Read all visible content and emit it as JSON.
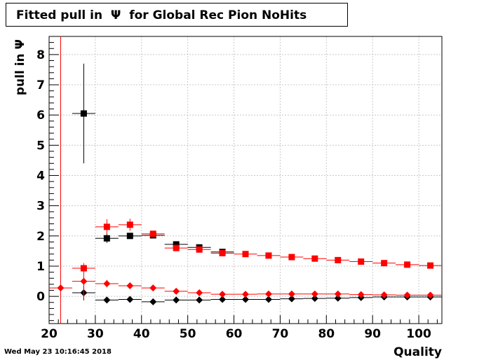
{
  "header": {
    "title": "Fitted pull in  Ψ  for Global Rec Pion NoHits"
  },
  "footer": {
    "timestamp": "Wed May 23 10:16:45 2018"
  },
  "colors": {
    "black_series": "#000000",
    "red_series": "#ff0000",
    "grid": "#c8c8c8",
    "cut_line": "#ff0000"
  },
  "chart_data": {
    "type": "scatter",
    "title": "Fitted pull in  Ψ  for Global Rec Pion NoHits",
    "xlabel": "Quality",
    "ylabel": "pull in  Ψ",
    "xlim": [
      20,
      105
    ],
    "ylim": [
      -0.9,
      8.6
    ],
    "x_ticks": [
      20,
      30,
      40,
      50,
      60,
      70,
      80,
      90,
      100
    ],
    "y_ticks": [
      0,
      1,
      2,
      3,
      4,
      5,
      6,
      7,
      8
    ],
    "grid": true,
    "legend": "none",
    "vertical_line_x": 22.5,
    "bin_half_width": 2.5,
    "series": [
      {
        "marker": "square",
        "color": "#000000",
        "points": [
          {
            "x": 27.5,
            "y": 6.05,
            "err": 1.65
          },
          {
            "x": 32.5,
            "y": 1.92,
            "err": 0.15
          },
          {
            "x": 37.5,
            "y": 2.0,
            "err": 0.08
          },
          {
            "x": 42.5,
            "y": 2.02,
            "err": 0.05
          },
          {
            "x": 47.5,
            "y": 1.72,
            "err": 0.04
          },
          {
            "x": 52.5,
            "y": 1.62,
            "err": 0.04
          },
          {
            "x": 57.5,
            "y": 1.47,
            "err": 0.03
          }
        ]
      },
      {
        "marker": "square",
        "color": "#ff0000",
        "points": [
          {
            "x": 27.5,
            "y": 0.93,
            "err": 0.1
          },
          {
            "x": 32.5,
            "y": 2.3,
            "err": 0.25
          },
          {
            "x": 37.5,
            "y": 2.37,
            "err": 0.2
          },
          {
            "x": 42.5,
            "y": 2.07,
            "err": 0.08
          },
          {
            "x": 47.5,
            "y": 1.6,
            "err": 0.05
          },
          {
            "x": 52.5,
            "y": 1.55,
            "err": 0.04
          },
          {
            "x": 57.5,
            "y": 1.43,
            "err": 0.03
          },
          {
            "x": 62.5,
            "y": 1.4,
            "err": 0.03
          },
          {
            "x": 67.5,
            "y": 1.35,
            "err": 0.03
          },
          {
            "x": 72.5,
            "y": 1.3,
            "err": 0.03
          },
          {
            "x": 77.5,
            "y": 1.25,
            "err": 0.03
          },
          {
            "x": 82.5,
            "y": 1.2,
            "err": 0.03
          },
          {
            "x": 87.5,
            "y": 1.15,
            "err": 0.03
          },
          {
            "x": 92.5,
            "y": 1.1,
            "err": 0.03
          },
          {
            "x": 97.5,
            "y": 1.05,
            "err": 0.03
          },
          {
            "x": 102.5,
            "y": 1.02,
            "err": 0.03
          }
        ]
      },
      {
        "marker": "diamond",
        "color": "#000000",
        "points": [
          {
            "x": 27.5,
            "y": 0.12,
            "err": 0.25
          },
          {
            "x": 32.5,
            "y": -0.12,
            "err": 0.08
          },
          {
            "x": 37.5,
            "y": -0.1,
            "err": 0.04
          },
          {
            "x": 42.5,
            "y": -0.18,
            "err": 0.03
          },
          {
            "x": 47.5,
            "y": -0.12,
            "err": 0.03
          },
          {
            "x": 52.5,
            "y": -0.12,
            "err": 0.03
          },
          {
            "x": 57.5,
            "y": -0.1,
            "err": 0.02
          },
          {
            "x": 62.5,
            "y": -0.1,
            "err": 0.02
          },
          {
            "x": 67.5,
            "y": -0.1,
            "err": 0.02
          },
          {
            "x": 72.5,
            "y": -0.08,
            "err": 0.02
          },
          {
            "x": 77.5,
            "y": -0.07,
            "err": 0.02
          },
          {
            "x": 82.5,
            "y": -0.06,
            "err": 0.02
          },
          {
            "x": 87.5,
            "y": -0.04,
            "err": 0.02
          },
          {
            "x": 92.5,
            "y": -0.02,
            "err": 0.02
          },
          {
            "x": 97.5,
            "y": -0.02,
            "err": 0.02
          },
          {
            "x": 102.5,
            "y": -0.02,
            "err": 0.02
          }
        ]
      },
      {
        "marker": "diamond",
        "color": "#ff0000",
        "points": [
          {
            "x": 22.5,
            "y": 0.28,
            "err": 0.05
          },
          {
            "x": 27.5,
            "y": 0.5,
            "err": 0.6
          },
          {
            "x": 32.5,
            "y": 0.42,
            "err": 0.12
          },
          {
            "x": 37.5,
            "y": 0.35,
            "err": 0.06
          },
          {
            "x": 42.5,
            "y": 0.28,
            "err": 0.04
          },
          {
            "x": 47.5,
            "y": 0.17,
            "err": 0.04
          },
          {
            "x": 52.5,
            "y": 0.12,
            "err": 0.03
          },
          {
            "x": 57.5,
            "y": 0.07,
            "err": 0.03
          },
          {
            "x": 62.5,
            "y": 0.07,
            "err": 0.02
          },
          {
            "x": 67.5,
            "y": 0.08,
            "err": 0.02
          },
          {
            "x": 72.5,
            "y": 0.08,
            "err": 0.02
          },
          {
            "x": 77.5,
            "y": 0.08,
            "err": 0.02
          },
          {
            "x": 82.5,
            "y": 0.08,
            "err": 0.02
          },
          {
            "x": 87.5,
            "y": 0.06,
            "err": 0.02
          },
          {
            "x": 92.5,
            "y": 0.05,
            "err": 0.02
          },
          {
            "x": 97.5,
            "y": 0.04,
            "err": 0.02
          },
          {
            "x": 102.5,
            "y": 0.04,
            "err": 0.02
          }
        ]
      }
    ]
  }
}
